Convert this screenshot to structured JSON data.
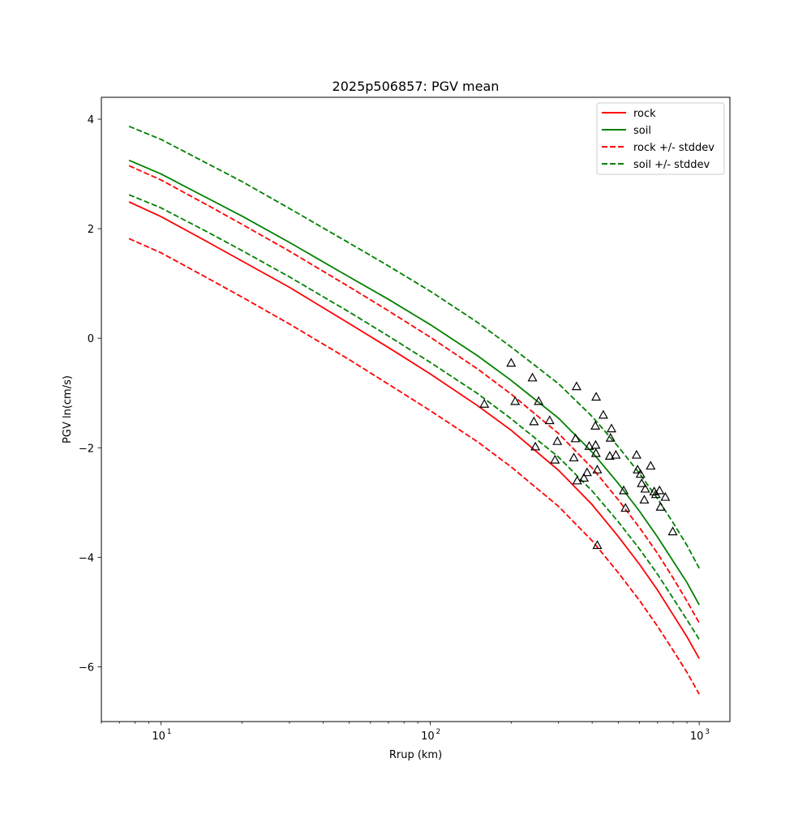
{
  "chart_data": {
    "type": "line",
    "title": "2025p506857: PGV mean",
    "xlabel": "Rrup (km)",
    "ylabel": "PGV ln(cm/s)",
    "xscale": "log",
    "xlim": [
      6,
      1300
    ],
    "ylim": [
      -7,
      4.4
    ],
    "x_ticks": [
      {
        "value": 10,
        "label": "10",
        "exp": "1"
      },
      {
        "value": 100,
        "label": "10",
        "exp": "2"
      },
      {
        "value": 1000,
        "label": "10",
        "exp": "3"
      }
    ],
    "y_ticks": [
      4,
      2,
      0,
      -2,
      -4,
      -6
    ],
    "y_tick_labels": [
      "4",
      "2",
      "0",
      "−2",
      "−4",
      "−6"
    ],
    "grid": false,
    "legend_position": "top-right",
    "legend": [
      "rock",
      "soil",
      "rock +/- stddev",
      "soil +/- stddev"
    ],
    "series": [
      {
        "name": "rock",
        "color": "#ff0000",
        "style": "solid",
        "x": [
          7.6,
          10,
          15,
          20,
          30,
          50,
          70,
          100,
          150,
          200,
          300,
          400,
          500,
          600,
          700,
          800,
          900,
          1000
        ],
        "y": [
          2.49,
          2.22,
          1.75,
          1.41,
          0.93,
          0.27,
          -0.17,
          -0.65,
          -1.23,
          -1.68,
          -2.41,
          -3.04,
          -3.62,
          -4.13,
          -4.6,
          -5.05,
          -5.45,
          -5.85
        ]
      },
      {
        "name": "soil",
        "color": "#008000",
        "style": "solid",
        "x": [
          7.6,
          10,
          15,
          20,
          30,
          50,
          70,
          100,
          150,
          200,
          300,
          400,
          500,
          600,
          700,
          800,
          900,
          1000
        ],
        "y": [
          3.25,
          3.0,
          2.55,
          2.23,
          1.75,
          1.12,
          0.71,
          0.25,
          -0.32,
          -0.77,
          -1.46,
          -2.08,
          -2.65,
          -3.16,
          -3.63,
          -4.07,
          -4.46,
          -4.87
        ]
      },
      {
        "name": "rock - stddev",
        "color": "#ff0000",
        "style": "dashed",
        "x": [
          7.6,
          10,
          15,
          20,
          30,
          50,
          70,
          100,
          150,
          200,
          300,
          400,
          500,
          600,
          700,
          800,
          900,
          1000
        ],
        "y": [
          1.82,
          1.56,
          1.09,
          0.75,
          0.26,
          -0.39,
          -0.84,
          -1.32,
          -1.89,
          -2.35,
          -3.07,
          -3.7,
          -4.28,
          -4.79,
          -5.26,
          -5.7,
          -6.1,
          -6.5
        ]
      },
      {
        "name": "rock + stddev",
        "color": "#ff0000",
        "style": "dashed",
        "x": [
          7.6,
          10,
          15,
          20,
          30,
          50,
          70,
          100,
          150,
          200,
          300,
          400,
          500,
          600,
          700,
          800,
          900,
          1000
        ],
        "y": [
          3.15,
          2.89,
          2.42,
          2.08,
          1.59,
          0.94,
          0.5,
          0.02,
          -0.56,
          -1.02,
          -1.74,
          -2.37,
          -2.95,
          -3.46,
          -3.93,
          -4.38,
          -4.8,
          -5.2
        ]
      },
      {
        "name": "soil - stddev",
        "color": "#008000",
        "style": "dashed",
        "x": [
          7.6,
          10,
          15,
          20,
          30,
          50,
          70,
          100,
          150,
          200,
          300,
          400,
          500,
          600,
          700,
          800,
          900,
          1000
        ],
        "y": [
          2.62,
          2.38,
          1.93,
          1.6,
          1.12,
          0.48,
          0.04,
          -0.44,
          -1.01,
          -1.47,
          -2.17,
          -2.79,
          -3.35,
          -3.85,
          -4.31,
          -4.75,
          -5.14,
          -5.5
        ]
      },
      {
        "name": "soil + stddev",
        "color": "#008000",
        "style": "dashed",
        "x": [
          7.6,
          10,
          15,
          20,
          30,
          50,
          70,
          100,
          150,
          200,
          300,
          400,
          500,
          600,
          700,
          800,
          900,
          1000
        ],
        "y": [
          3.87,
          3.63,
          3.18,
          2.86,
          2.37,
          1.74,
          1.32,
          0.86,
          0.29,
          -0.16,
          -0.83,
          -1.43,
          -1.98,
          -2.47,
          -2.93,
          -3.37,
          -3.78,
          -4.2
        ]
      },
      {
        "name": "observations",
        "marker": "triangle",
        "color": "#000000",
        "style": "none",
        "x": [
          159,
          200,
          207,
          240,
          243,
          246,
          253,
          278,
          291,
          297,
          342,
          347,
          350,
          352,
          373,
          383,
          390,
          411,
          412,
          413,
          414,
          418,
          440,
          465,
          468,
          472,
          490,
          524,
          532,
          585,
          590,
          605,
          611,
          625,
          630,
          660,
          680,
          690,
          712,
          718,
          748,
          797
        ],
        "y": [
          -1.2,
          -0.45,
          -1.15,
          -0.72,
          -1.52,
          -1.98,
          -1.15,
          -1.5,
          -2.22,
          -1.88,
          -2.18,
          -1.83,
          -0.88,
          -2.6,
          -2.55,
          -2.45,
          -1.97,
          -1.6,
          -1.95,
          -2.1,
          -1.07,
          -2.4,
          -1.4,
          -2.15,
          -1.82,
          -1.65,
          -2.13,
          -2.78,
          -3.1,
          -2.13,
          -2.4,
          -2.48,
          -2.65,
          -2.95,
          -2.75,
          -2.33,
          -2.8,
          -2.85,
          -2.78,
          -3.08,
          -2.9,
          -3.53
        ]
      },
      {
        "name": "observation outlier",
        "marker": "triangle",
        "color": "#000000",
        "style": "none",
        "x": [
          418
        ],
        "y": [
          -3.78
        ]
      }
    ]
  }
}
